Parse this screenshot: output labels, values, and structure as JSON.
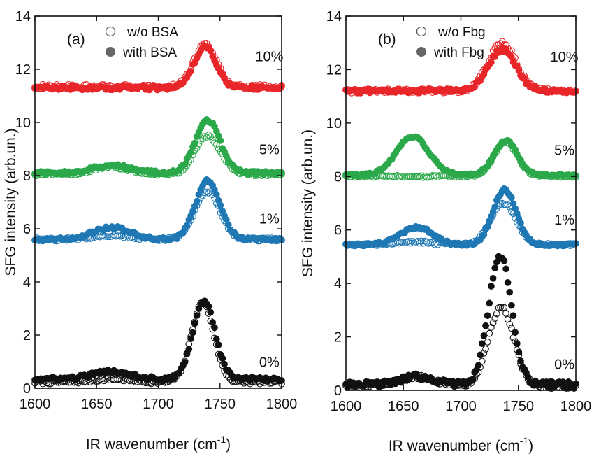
{
  "colors": {
    "red": "#e8262a",
    "green": "#2ba84a",
    "blue": "#1f78b4",
    "black": "#111111"
  },
  "chart_data": [
    {
      "type": "scatter",
      "panel_label": "(a)",
      "xlabel": "IR wavenumber (cm-1)",
      "xlabel_main": "IR wavenumber (cm",
      "xlabel_sup": "-1",
      "xlabel_close": ")",
      "ylabel": "SFG intensity (arb.un.)",
      "xlim": [
        1600,
        1800
      ],
      "ylim": [
        0,
        14
      ],
      "x_ticks": [
        1600,
        1650,
        1700,
        1750,
        1800
      ],
      "y_ticks": [
        0,
        2,
        4,
        6,
        8,
        10,
        12,
        14
      ],
      "legend": {
        "position": "top-left",
        "open_label": "w/o BSA",
        "filled_label": "with BSA"
      },
      "series": [
        {
          "name": "0%",
          "color": "#111111",
          "label_x": 1790,
          "label_y": 0.8,
          "without": {
            "baseline": 0.22,
            "peak_center": 1736,
            "peak_height": 3.0,
            "peak_width": 9,
            "band_center": 1662,
            "band_height": 0.12,
            "band_width": 15,
            "noise": 0.06
          },
          "with": {
            "baseline": 0.35,
            "peak_center": 1737,
            "peak_height": 2.95,
            "peak_width": 9,
            "band_center": 1662,
            "band_height": 0.28,
            "band_width": 15,
            "noise": 0.07
          }
        },
        {
          "name": "1%",
          "color": "#1f78b4",
          "label_x": 1790,
          "label_y": 6.2,
          "without": {
            "baseline": 5.6,
            "peak_center": 1740,
            "peak_height": 1.8,
            "peak_width": 10,
            "band_center": 1662,
            "band_height": 0.15,
            "band_width": 15,
            "noise": 0.06
          },
          "with": {
            "baseline": 5.6,
            "peak_center": 1740,
            "peak_height": 2.2,
            "peak_width": 10,
            "band_center": 1662,
            "band_height": 0.45,
            "band_width": 15,
            "noise": 0.06
          }
        },
        {
          "name": "5%",
          "color": "#2ba84a",
          "label_x": 1790,
          "label_y": 8.8,
          "without": {
            "baseline": 8.05,
            "peak_center": 1740,
            "peak_height": 1.45,
            "peak_width": 10,
            "band_center": 1662,
            "band_height": 0.28,
            "band_width": 15,
            "noise": 0.06
          },
          "with": {
            "baseline": 8.1,
            "peak_center": 1740,
            "peak_height": 2.0,
            "peak_width": 10,
            "band_center": 1662,
            "band_height": 0.28,
            "band_width": 15,
            "noise": 0.06
          }
        },
        {
          "name": "10%",
          "color": "#e8262a",
          "label_x": 1790,
          "label_y": 12.3,
          "without": {
            "baseline": 11.35,
            "peak_center": 1738,
            "peak_height": 1.6,
            "peak_width": 9,
            "band_center": 1662,
            "band_height": 0.0,
            "band_width": 15,
            "noise": 0.08
          },
          "with": {
            "baseline": 11.3,
            "peak_center": 1738,
            "peak_height": 1.55,
            "peak_width": 9,
            "band_center": 1662,
            "band_height": 0.0,
            "band_width": 15,
            "noise": 0.08
          }
        }
      ]
    },
    {
      "type": "scatter",
      "panel_label": "(b)",
      "xlabel": "IR wavenumber (cm-1)",
      "xlabel_main": "IR wavenumber (cm",
      "xlabel_sup": "-1",
      "xlabel_close": ")",
      "ylabel": "SFG intensity (arb.un.)",
      "xlim": [
        1600,
        1800
      ],
      "ylim": [
        0,
        14
      ],
      "x_ticks": [
        1600,
        1650,
        1700,
        1750,
        1800
      ],
      "y_ticks": [
        0,
        2,
        4,
        6,
        8,
        10,
        12,
        14
      ],
      "legend": {
        "position": "top-left",
        "open_label": "w/o Fbg",
        "filled_label": "with Fbg"
      },
      "series": [
        {
          "name": "0%",
          "color": "#111111",
          "label_x": 1790,
          "label_y": 0.8,
          "without": {
            "baseline": 0.15,
            "peak_center": 1735,
            "peak_height": 2.95,
            "peak_width": 11,
            "band_center": 1662,
            "band_height": 0.35,
            "band_width": 16,
            "noise": 0.08
          },
          "with": {
            "baseline": 0.2,
            "peak_center": 1734,
            "peak_height": 4.85,
            "peak_width": 10,
            "band_center": 1662,
            "band_height": 0.3,
            "band_width": 16,
            "noise": 0.12
          }
        },
        {
          "name": "1%",
          "color": "#1f78b4",
          "label_x": 1790,
          "label_y": 6.2,
          "without": {
            "baseline": 5.45,
            "peak_center": 1737,
            "peak_height": 1.55,
            "peak_width": 11,
            "band_center": 1662,
            "band_height": 0.1,
            "band_width": 15,
            "noise": 0.05
          },
          "with": {
            "baseline": 5.45,
            "peak_center": 1738,
            "peak_height": 2.05,
            "peak_width": 10,
            "band_center": 1662,
            "band_height": 0.65,
            "band_width": 14,
            "noise": 0.05
          }
        },
        {
          "name": "5%",
          "color": "#2ba84a",
          "label_x": 1790,
          "label_y": 8.8,
          "without": {
            "baseline": 8.0,
            "peak_center": 1739,
            "peak_height": 1.3,
            "peak_width": 10,
            "band_center": 1662,
            "band_height": 0.0,
            "band_width": 15,
            "noise": 0.04
          },
          "with": {
            "baseline": 8.05,
            "peak_center": 1739,
            "peak_height": 1.3,
            "peak_width": 10,
            "band_center": 1658,
            "band_height": 1.45,
            "band_width": 14,
            "noise": 0.04
          }
        },
        {
          "name": "10%",
          "color": "#e8262a",
          "label_x": 1790,
          "label_y": 12.3,
          "without": {
            "baseline": 11.2,
            "peak_center": 1736,
            "peak_height": 1.8,
            "peak_width": 12,
            "band_center": 1662,
            "band_height": 0.0,
            "band_width": 15,
            "noise": 0.08
          },
          "with": {
            "baseline": 11.2,
            "peak_center": 1736,
            "peak_height": 1.55,
            "peak_width": 12,
            "band_center": 1662,
            "band_height": 0.0,
            "band_width": 15,
            "noise": 0.08
          }
        }
      ]
    }
  ]
}
